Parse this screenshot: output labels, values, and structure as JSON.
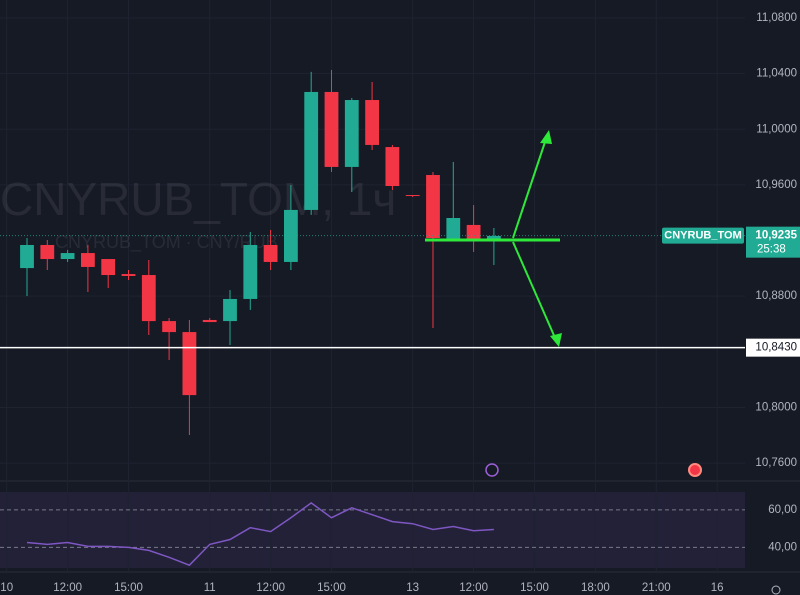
{
  "chart_data": [
    {
      "type": "candlestick",
      "watermark": [
        "CNYRUB_TOM, 1ч",
        "CNYRUB_TOM · CNY/RUB"
      ],
      "x": [
        0,
        1,
        2,
        3,
        4,
        5,
        6,
        7,
        8,
        9,
        10,
        11,
        12,
        13,
        14,
        15,
        16,
        17,
        18,
        19,
        20,
        21,
        22,
        23
      ],
      "open": [
        10.9002,
        10.9168,
        10.9067,
        10.911,
        10.9067,
        10.8959,
        10.8952,
        10.8621,
        10.8542,
        10.8629,
        10.8621,
        10.878,
        10.9168,
        10.9046,
        10.942,
        11.0268,
        10.9729,
        11.021,
        10.9872,
        10.9527,
        10.9671,
        10.9204,
        10.9312,
        10.9204
      ],
      "high": [
        10.9218,
        10.9204,
        10.9132,
        10.9168,
        10.906,
        10.8988,
        10.906,
        10.8643,
        10.8629,
        10.8643,
        10.8844,
        10.9261,
        10.9276,
        10.9599,
        11.0412,
        11.0426,
        11.0225,
        11.034,
        10.9887,
        10.9527,
        10.9693,
        10.9765,
        10.9455,
        10.929
      ],
      "low": [
        10.8801,
        10.8988,
        10.9046,
        10.883,
        10.8859,
        10.8916,
        10.8521,
        10.8341,
        10.7802,
        10.8614,
        10.8449,
        10.8701,
        10.8988,
        10.8988,
        10.9384,
        10.9693,
        10.9549,
        10.9851,
        10.9563,
        10.9513,
        10.8571,
        10.9204,
        10.9118,
        10.9024
      ],
      "close": [
        10.9168,
        10.9067,
        10.911,
        10.901,
        10.8952,
        10.8945,
        10.8621,
        10.8542,
        10.8089,
        10.8614,
        10.878,
        10.9168,
        10.9046,
        10.942,
        11.0268,
        10.9729,
        11.021,
        10.9887,
        10.9592,
        10.952,
        10.9218,
        10.9362,
        10.9204,
        10.9233
      ],
      "up_color": "#22ab94",
      "down_color": "#f23645",
      "xlim": [
        -1.33,
        35.37
      ],
      "xticks": [
        {
          "value": -1,
          "label": "10"
        },
        {
          "value": 2,
          "label": "12:00"
        },
        {
          "value": 5,
          "label": "15:00"
        },
        {
          "value": 9,
          "label": "11"
        },
        {
          "value": 12,
          "label": "12:00"
        },
        {
          "value": 15,
          "label": "15:00"
        },
        {
          "value": 19,
          "label": "13"
        },
        {
          "value": 22,
          "label": "12:00"
        },
        {
          "value": 25,
          "label": "15:00"
        },
        {
          "value": 28,
          "label": "18:00"
        },
        {
          "value": 31,
          "label": "21:00"
        },
        {
          "value": 34,
          "label": "16"
        }
      ],
      "ylim": [
        10.7493,
        11.0929
      ],
      "yticks": [
        {
          "value": 11.08,
          "label": "11,0800"
        },
        {
          "value": 11.04,
          "label": "11,0400"
        },
        {
          "value": 11.0,
          "label": "11,0000"
        },
        {
          "value": 10.96,
          "label": "10,9600"
        },
        {
          "value": 10.88,
          "label": "10,8800"
        },
        {
          "value": 10.8,
          "label": "10,8000"
        },
        {
          "value": 10.76,
          "label": "10,7600"
        }
      ],
      "grid": true,
      "hline": {
        "value": 10.843,
        "label": "10,8430",
        "color": "#ffffff"
      },
      "last_price": {
        "value": 10.9235,
        "label": "10,9235",
        "symbol": "CNYRUB_TOM",
        "countdown": "25:38",
        "color": "#22ab94"
      }
    },
    {
      "type": "line",
      "x": [
        0,
        1,
        2,
        3,
        4,
        5,
        6,
        7,
        8,
        9,
        10,
        11,
        12,
        13,
        14,
        15,
        16,
        17,
        18,
        19,
        20,
        21,
        22,
        23
      ],
      "values": [
        42.6,
        41.6,
        42.6,
        40.5,
        40.5,
        40.0,
        38.4,
        34.7,
        30.5,
        41.6,
        44.2,
        50.5,
        48.4,
        55.8,
        63.7,
        55.8,
        61.1,
        57.4,
        53.7,
        52.6,
        49.5,
        51.1,
        48.9,
        49.5
      ],
      "color": "#7e57c2",
      "xlim": [
        -1.33,
        35.37
      ],
      "ylim": [
        29,
        69.5
      ],
      "yticks": [
        {
          "value": 60,
          "label": "60,00"
        },
        {
          "value": 40,
          "label": "40,00"
        }
      ]
    }
  ]
}
